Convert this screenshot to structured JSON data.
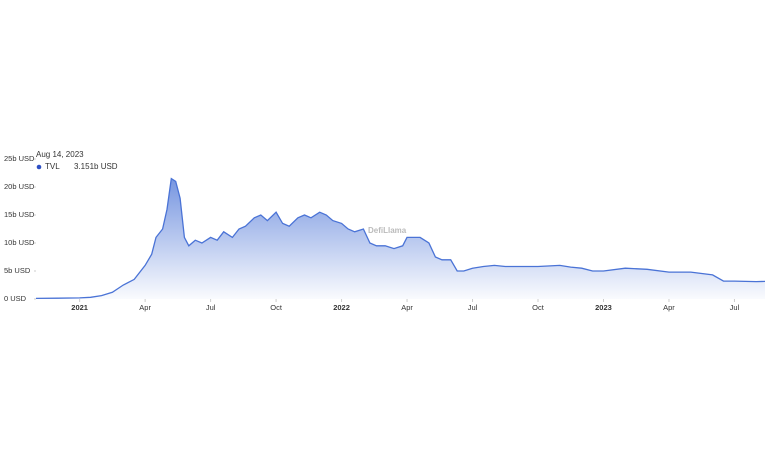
{
  "chart_data": {
    "type": "area",
    "date_label": "Aug 14, 2023",
    "series": [
      {
        "name": "TVL",
        "value_label": "3.151b USD",
        "color": "#4a73d6",
        "x": [
          -2,
          -1,
          0,
          0.5,
          1,
          1.5,
          2,
          2.5,
          3,
          3.3,
          3.5,
          3.8,
          4,
          4.2,
          4.4,
          4.6,
          4.8,
          5,
          5.3,
          5.6,
          6,
          6.3,
          6.6,
          7,
          7.3,
          7.6,
          8,
          8.3,
          8.6,
          9,
          9.3,
          9.6,
          10,
          10.3,
          10.6,
          11,
          11.3,
          11.6,
          12,
          12.3,
          12.6,
          13,
          13.3,
          13.6,
          14,
          14.4,
          14.8,
          15,
          15.3,
          15.6,
          16,
          16.3,
          16.6,
          17,
          17.3,
          17.6,
          18,
          18.5,
          19,
          19.5,
          20,
          21,
          22,
          22.5,
          23,
          23.5,
          24,
          25,
          26,
          27,
          28,
          29,
          29.5,
          30,
          31,
          31.4
        ],
        "values": [
          0.1,
          0.15,
          0.2,
          0.3,
          0.6,
          1.2,
          2.5,
          3.5,
          6,
          8,
          11,
          12.5,
          16,
          21.5,
          21,
          18,
          11,
          9.5,
          10.5,
          10,
          11,
          10.5,
          12,
          11,
          12.5,
          13,
          14.5,
          15,
          14,
          15.5,
          13.5,
          13,
          14.5,
          15,
          14.5,
          15.5,
          15,
          14,
          13.5,
          12.5,
          12,
          12.5,
          10,
          9.5,
          9.5,
          9,
          9.5,
          11,
          11,
          11,
          10,
          7.5,
          7,
          7,
          5,
          5,
          5.5,
          5.8,
          6,
          5.8,
          5.8,
          5.8,
          6,
          5.7,
          5.5,
          5,
          5,
          5.5,
          5.3,
          4.8,
          4.8,
          4.3,
          3.2,
          3.2,
          3.1,
          3.15
        ]
      }
    ],
    "watermark": "DefiLlama",
    "xlim": [
      -2,
      31.4
    ],
    "xticks": [
      {
        "value": 0,
        "label": "2021"
      },
      {
        "value": 3,
        "label": "Apr"
      },
      {
        "value": 6,
        "label": "Jul"
      },
      {
        "value": 9,
        "label": "Oct"
      },
      {
        "value": 12,
        "label": "2022"
      },
      {
        "value": 15,
        "label": "Apr"
      },
      {
        "value": 18,
        "label": "Jul"
      },
      {
        "value": 21,
        "label": "Oct"
      },
      {
        "value": 24,
        "label": "2023"
      },
      {
        "value": 27,
        "label": "Apr"
      },
      {
        "value": 30,
        "label": "Jul"
      }
    ],
    "ylim": [
      0,
      25
    ],
    "yticks": [
      {
        "value": 0,
        "label": "0 USD"
      },
      {
        "value": 5,
        "label": "5b USD"
      },
      {
        "value": 10,
        "label": "10b USD"
      },
      {
        "value": 15,
        "label": "15b USD"
      },
      {
        "value": 20,
        "label": "20b USD"
      },
      {
        "value": 25,
        "label": "25b USD"
      }
    ]
  }
}
